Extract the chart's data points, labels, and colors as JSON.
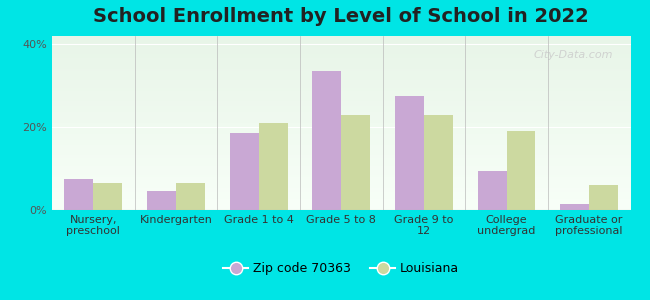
{
  "title": "School Enrollment by Level of School in 2022",
  "categories": [
    "Nursery,\npreschool",
    "Kindergarten",
    "Grade 1 to 4",
    "Grade 5 to 8",
    "Grade 9 to\n12",
    "College\nundergrad",
    "Graduate or\nprofessional"
  ],
  "zip_values": [
    7.5,
    4.5,
    18.5,
    33.5,
    27.5,
    9.5,
    1.5
  ],
  "louisiana_values": [
    6.5,
    6.5,
    21.0,
    23.0,
    23.0,
    19.0,
    6.0
  ],
  "zip_color": "#c9a8d4",
  "louisiana_color": "#ccd9a0",
  "background_outer": "#00e5e5",
  "ylim": [
    0,
    42
  ],
  "yticks": [
    0,
    20,
    40
  ],
  "ytick_labels": [
    "0%",
    "20%",
    "40%"
  ],
  "legend_zip_label": "Zip code 70363",
  "legend_louisiana_label": "Louisiana",
  "bar_width": 0.35,
  "title_fontsize": 14,
  "tick_fontsize": 8,
  "legend_fontsize": 9,
  "watermark_text": "City-Data.com"
}
